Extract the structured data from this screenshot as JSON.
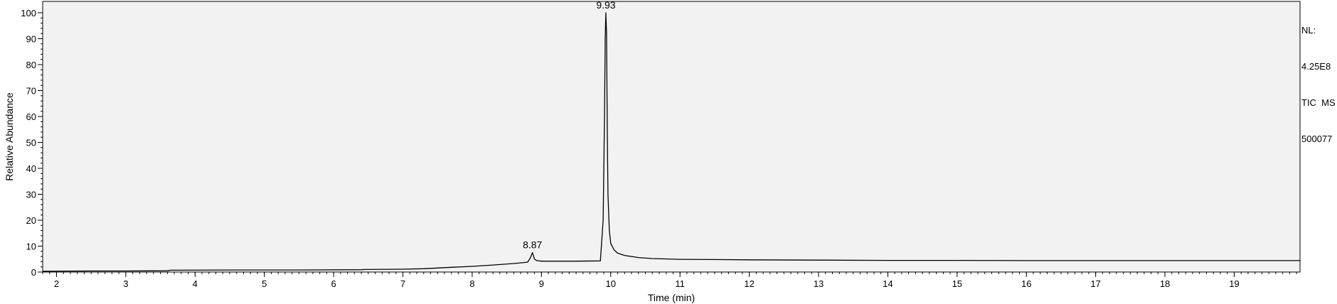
{
  "info": {
    "nl_label": "NL:",
    "nl_value": "4.25E8",
    "scan_type": "TIC  MS",
    "sample": "500077"
  },
  "chart_data": {
    "type": "line",
    "title": "",
    "xlabel": "Time (min)",
    "ylabel": "Relative Abundance",
    "xlim": [
      1.8,
      19.95
    ],
    "ylim": [
      0,
      100
    ],
    "x_ticks": [
      2,
      3,
      4,
      5,
      6,
      7,
      8,
      9,
      10,
      11,
      12,
      13,
      14,
      15,
      16,
      17,
      18,
      19
    ],
    "y_ticks": [
      0,
      10,
      20,
      30,
      40,
      50,
      60,
      70,
      80,
      90,
      100
    ],
    "grid": false,
    "series": [
      {
        "color": "#000000",
        "x": [
          1.8,
          2.5,
          3.0,
          3.6,
          3.65,
          4.5,
          5.5,
          6.4,
          6.45,
          7.0,
          7.3,
          7.6,
          8.0,
          8.3,
          8.6,
          8.8,
          8.84,
          8.87,
          8.9,
          8.93,
          9.0,
          9.5,
          9.85,
          9.89,
          9.91,
          9.92,
          9.93,
          9.94,
          9.95,
          9.96,
          9.98,
          10.0,
          10.05,
          10.1,
          10.2,
          10.4,
          10.6,
          11.0,
          12.0,
          13.0,
          14.0,
          15.0,
          16.0,
          17.0,
          18.0,
          19.0,
          19.95
        ],
        "y": [
          0.3,
          0.4,
          0.4,
          0.5,
          0.7,
          0.8,
          0.8,
          0.9,
          1.0,
          1.1,
          1.3,
          1.7,
          2.2,
          2.7,
          3.3,
          3.8,
          5.5,
          7.5,
          5.0,
          4.4,
          4.2,
          4.2,
          4.3,
          20,
          60,
          90,
          100,
          92,
          55,
          30,
          16,
          11,
          8.5,
          7.3,
          6.4,
          5.6,
          5.2,
          4.9,
          4.7,
          4.6,
          4.5,
          4.5,
          4.4,
          4.4,
          4.4,
          4.4,
          4.4
        ]
      }
    ],
    "annotations": [
      {
        "x": 8.87,
        "y": 7.5,
        "text": "8.87"
      },
      {
        "x": 9.93,
        "y": 100,
        "text": "9.93"
      }
    ]
  }
}
